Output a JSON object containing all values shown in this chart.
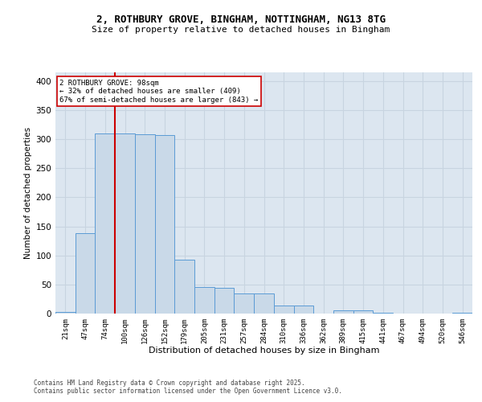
{
  "title_line1": "2, ROTHBURY GROVE, BINGHAM, NOTTINGHAM, NG13 8TG",
  "title_line2": "Size of property relative to detached houses in Bingham",
  "xlabel": "Distribution of detached houses by size in Bingham",
  "ylabel": "Number of detached properties",
  "categories": [
    "21sqm",
    "47sqm",
    "74sqm",
    "100sqm",
    "126sqm",
    "152sqm",
    "179sqm",
    "205sqm",
    "231sqm",
    "257sqm",
    "284sqm",
    "310sqm",
    "336sqm",
    "362sqm",
    "389sqm",
    "415sqm",
    "441sqm",
    "467sqm",
    "494sqm",
    "520sqm",
    "546sqm"
  ],
  "values": [
    3,
    138,
    310,
    310,
    308,
    307,
    93,
    45,
    44,
    34,
    34,
    14,
    14,
    0,
    6,
    6,
    1,
    0,
    0,
    0,
    2
  ],
  "bar_color": "#c9d9e8",
  "bar_edge_color": "#5b9bd5",
  "grid_color": "#c8d4e0",
  "background_color": "#dce6f0",
  "property_line_label": "2 ROTHBURY GROVE: 98sqm",
  "annotation_line1": "← 32% of detached houses are smaller (409)",
  "annotation_line2": "67% of semi-detached houses are larger (843) →",
  "annotation_box_color": "#cc0000",
  "vline_color": "#cc0000",
  "vline_x": 2.5,
  "footer_line1": "Contains HM Land Registry data © Crown copyright and database right 2025.",
  "footer_line2": "Contains public sector information licensed under the Open Government Licence v3.0.",
  "ylim": [
    0,
    415
  ],
  "yticks": [
    0,
    50,
    100,
    150,
    200,
    250,
    300,
    350,
    400
  ]
}
